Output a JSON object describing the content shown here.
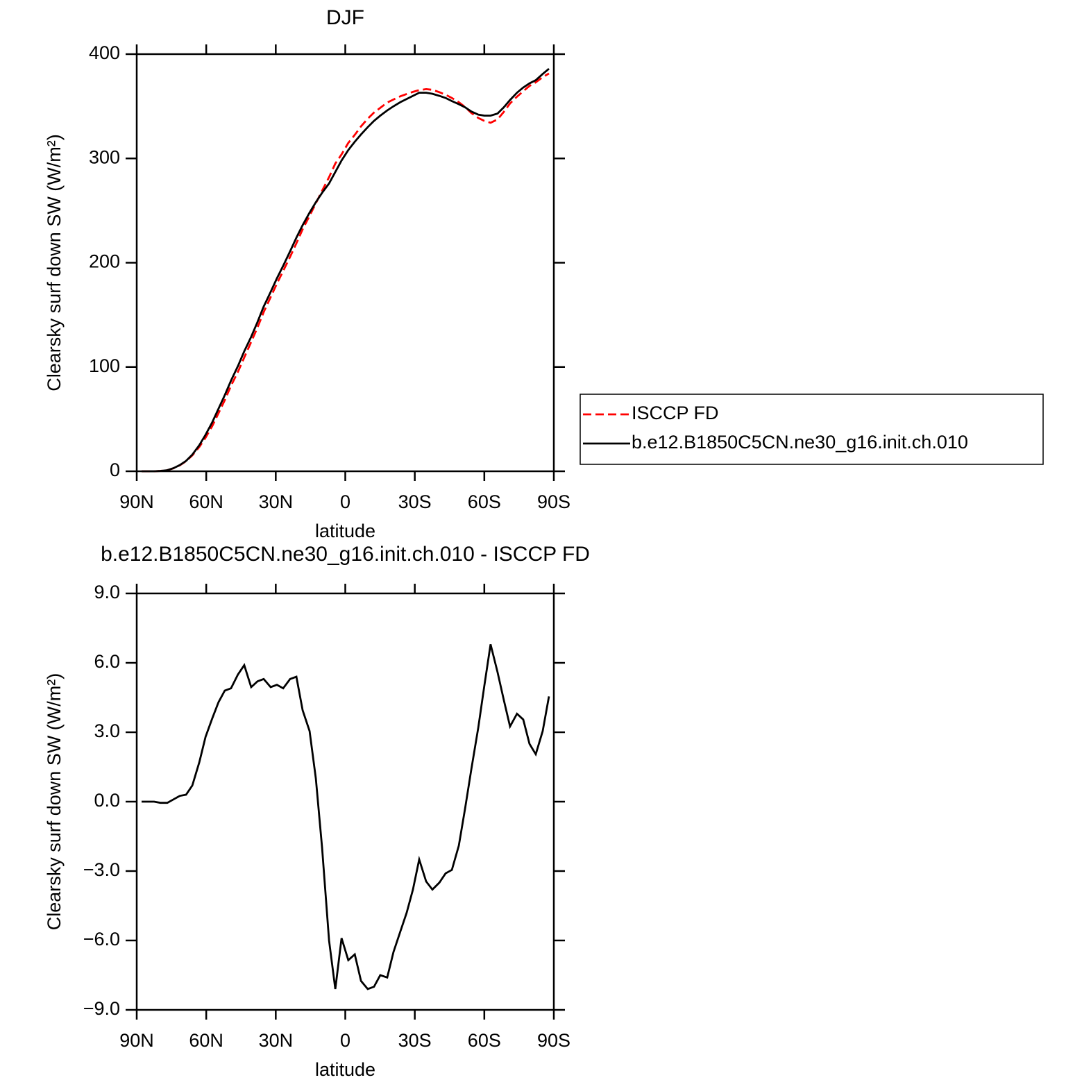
{
  "chart_data": [
    {
      "type": "line",
      "title": "DJF",
      "xlabel": "latitude",
      "ylabel": "Clearsky surf down SW (W/m²)",
      "x": [
        87.9,
        85.2,
        82.5,
        79.8,
        76.8,
        74.1,
        71.4,
        68.7,
        66.0,
        63.0,
        60.3,
        57.4,
        54.7,
        52.0,
        49.3,
        46.3,
        43.6,
        40.6,
        37.9,
        35.2,
        32.2,
        29.5,
        26.8,
        23.8,
        21.1,
        18.4,
        15.4,
        12.7,
        10.0,
        7.0,
        4.3,
        1.6,
        -1.3,
        -4.1,
        -6.8,
        -9.7,
        -12.4,
        -15.1,
        -18.1,
        -20.8,
        -23.8,
        -26.5,
        -29.2,
        -31.9,
        -34.9,
        -37.6,
        -40.6,
        -43.3,
        -46.0,
        -49.0,
        -51.7,
        -54.4,
        -57.4,
        -60.0,
        -62.7,
        -65.7,
        -68.4,
        -71.1,
        -74.1,
        -76.8,
        -79.5,
        -82.2,
        -85.2,
        -87.9
      ],
      "series": [
        {
          "name": "ISCCP FD",
          "color": "#ff0000",
          "dashed": true,
          "values": [
            0,
            0,
            0,
            0.35,
            1.05,
            2.9,
            5.75,
            9.7,
            15.3,
            23.3,
            32.2,
            43.4,
            55.7,
            68.2,
            82.1,
            95.5,
            109.1,
            124.05,
            137.8,
            152.7,
            167.05,
            179.95,
            192.1,
            205.7,
            218.6,
            232.05,
            244.95,
            257,
            269,
            282,
            295.1,
            303.9,
            314.85,
            322.6,
            330.75,
            338.1,
            344,
            348.5,
            353.6,
            356.5,
            359.6,
            361.8,
            363.8,
            365.5,
            366.45,
            365.8,
            363.5,
            361.1,
            357.95,
            353.9,
            349.3,
            343.6,
            338.8,
            336,
            334.2,
            337.4,
            344.6,
            352.75,
            359.2,
            364.45,
            369.5,
            372.95,
            377.95,
            381.45
          ]
        },
        {
          "name": "b.e12.B1850C5CN.ne30_g16.init.ch.010",
          "color": "#000000",
          "dashed": false,
          "values": [
            0,
            0,
            0,
            0.3,
            1,
            3,
            6,
            10,
            16,
            25,
            35,
            47,
            60,
            73,
            87,
            101,
            115,
            129,
            143,
            158,
            172,
            185,
            197,
            211,
            224,
            236,
            248,
            258,
            267,
            276,
            287,
            298,
            308,
            316,
            323,
            330,
            336,
            341,
            346,
            350,
            354,
            357,
            360,
            363,
            363,
            362,
            360,
            358,
            355,
            352,
            349,
            345,
            342,
            341,
            341,
            343,
            349,
            356,
            363,
            368,
            372,
            375,
            381,
            386
          ]
        }
      ],
      "xlim": [
        90,
        -90
      ],
      "xticks": [
        {
          "value": 90,
          "label": "90N"
        },
        {
          "value": 60,
          "label": "60N"
        },
        {
          "value": 30,
          "label": "30N"
        },
        0,
        {
          "value": -30,
          "label": "30S"
        },
        {
          "value": -60,
          "label": "60S"
        },
        {
          "value": -90,
          "label": "90S"
        }
      ],
      "ylim": [
        0,
        400
      ],
      "yticks": [
        0,
        100,
        200,
        300,
        400
      ],
      "legend": "right"
    },
    {
      "type": "line",
      "title": "b.e12.B1850C5CN.ne30_g16.init.ch.010 - ISCCP FD",
      "xlabel": "latitude",
      "ylabel": "Clearsky surf down SW (W/m²)",
      "x": [
        87.9,
        85.2,
        82.5,
        79.8,
        76.8,
        74.1,
        71.4,
        68.7,
        66.0,
        63.0,
        60.3,
        57.4,
        54.7,
        52.0,
        49.3,
        46.3,
        43.6,
        40.6,
        37.9,
        35.2,
        32.2,
        29.5,
        26.8,
        23.8,
        21.1,
        18.4,
        15.4,
        12.7,
        10.0,
        7.0,
        4.3,
        1.6,
        -1.3,
        -4.1,
        -6.8,
        -9.7,
        -12.4,
        -15.1,
        -18.1,
        -20.8,
        -23.8,
        -26.5,
        -29.2,
        -31.9,
        -34.9,
        -37.6,
        -40.6,
        -43.3,
        -46.0,
        -49.0,
        -51.7,
        -54.4,
        -57.4,
        -60.0,
        -62.7,
        -65.7,
        -68.4,
        -71.1,
        -74.1,
        -76.8,
        -79.5,
        -82.2,
        -85.2,
        -87.9
      ],
      "color": "#000000",
      "values": [
        0,
        0,
        0,
        -0.05,
        -0.05,
        0.1,
        0.25,
        0.3,
        0.7,
        1.7,
        2.8,
        3.6,
        4.3,
        4.8,
        4.9,
        5.5,
        5.9,
        4.95,
        5.2,
        5.3,
        4.95,
        5.05,
        4.9,
        5.3,
        5.4,
        3.95,
        3.05,
        1.0,
        -2.0,
        -6.0,
        -8.1,
        -5.9,
        -6.85,
        -6.6,
        -7.75,
        -8.1,
        -8.0,
        -7.5,
        -7.6,
        -6.5,
        -5.6,
        -4.8,
        -3.8,
        -2.5,
        -3.45,
        -3.8,
        -3.5,
        -3.1,
        -2.95,
        -1.9,
        -0.3,
        1.4,
        3.2,
        5.0,
        6.8,
        5.6,
        4.4,
        3.25,
        3.8,
        3.55,
        2.5,
        2.05,
        3.05,
        4.55
      ],
      "xlim": [
        90,
        -90
      ],
      "xticks": [
        {
          "value": 90,
          "label": "90N"
        },
        {
          "value": 60,
          "label": "60N"
        },
        {
          "value": 30,
          "label": "30N"
        },
        0,
        {
          "value": -30,
          "label": "30S"
        },
        {
          "value": -60,
          "label": "60S"
        },
        {
          "value": -90,
          "label": "90S"
        }
      ],
      "ylim": [
        -9,
        9
      ],
      "yticks": [
        {
          "value": -9,
          "label": "−9.0"
        },
        {
          "value": -6,
          "label": "−6.0"
        },
        {
          "value": -3,
          "label": "−3.0"
        },
        {
          "value": 0,
          "label": "0.0"
        },
        {
          "value": 3,
          "label": "3.0"
        },
        {
          "value": 6,
          "label": "6.0"
        },
        {
          "value": 9,
          "label": "9.0"
        }
      ]
    }
  ]
}
